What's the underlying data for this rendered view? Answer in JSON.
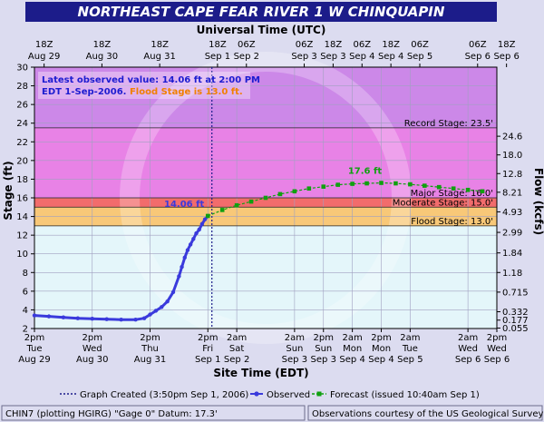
{
  "chart_data": {
    "type": "line",
    "title": "NORTHEAST CAPE FEAR RIVER 1 W CHINQUAPIN",
    "top_axis_title": "Universal Time (UTC)",
    "bottom_axis_title": "Site Time (EDT)",
    "ylabel": "Stage (ft)",
    "y2label": "Flow (kcfs)",
    "ylim": [
      2,
      30
    ],
    "xlim": [
      "Aug 29 2pm",
      "Sep 6 2pm"
    ],
    "y_ticks": [
      2,
      4,
      6,
      8,
      10,
      12,
      14,
      16,
      18,
      20,
      22,
      24,
      26,
      28,
      30
    ],
    "flow_ticks": [
      {
        "stage": 2.05,
        "label": "0.055"
      },
      {
        "stage": 2.9,
        "label": "0.177"
      },
      {
        "stage": 3.8,
        "label": "0.332"
      },
      {
        "stage": 5.9,
        "label": "0.715"
      },
      {
        "stage": 8.0,
        "label": "1.18"
      },
      {
        "stage": 10.1,
        "label": "1.84"
      },
      {
        "stage": 12.3,
        "label": "2.99"
      },
      {
        "stage": 14.5,
        "label": "4.93"
      },
      {
        "stage": 16.6,
        "label": "8.21"
      },
      {
        "stage": 18.6,
        "label": "12.8"
      },
      {
        "stage": 20.6,
        "label": "18.0"
      },
      {
        "stage": 22.6,
        "label": "24.6"
      }
    ],
    "top_ticks": [
      {
        "day": 0.167,
        "l1": "18Z",
        "l2": "Aug 29"
      },
      {
        "day": 1.167,
        "l1": "18Z",
        "l2": "Aug 30"
      },
      {
        "day": 2.167,
        "l1": "18Z",
        "l2": "Aug 31"
      },
      {
        "day": 3.167,
        "l1": "18Z",
        "l2": "Sep 1"
      },
      {
        "day": 3.667,
        "l1": "06Z",
        "l2": "Sep 2"
      },
      {
        "day": 4.667,
        "l1": "06Z",
        "l2": "Sep 3"
      },
      {
        "day": 5.167,
        "l1": "18Z",
        "l2": "Sep 3"
      },
      {
        "day": 5.667,
        "l1": "06Z",
        "l2": "Sep 4"
      },
      {
        "day": 6.167,
        "l1": "18Z",
        "l2": "Sep 4"
      },
      {
        "day": 6.667,
        "l1": "06Z",
        "l2": "Sep 5"
      },
      {
        "day": 7.667,
        "l1": "06Z",
        "l2": "Sep 6"
      },
      {
        "day": 8.167,
        "l1": "18Z",
        "l2": "Sep 6"
      }
    ],
    "bottom_ticks": [
      {
        "day": 0,
        "l1": "2pm",
        "l2": "Tue",
        "l3": "Aug 29"
      },
      {
        "day": 1,
        "l1": "2pm",
        "l2": "Wed",
        "l3": "Aug 30"
      },
      {
        "day": 2,
        "l1": "2pm",
        "l2": "Thu",
        "l3": "Aug 31"
      },
      {
        "day": 3,
        "l1": "2pm",
        "l2": "Fri",
        "l3": "Sep 1"
      },
      {
        "day": 3.5,
        "l1": "2am",
        "l2": "Sat",
        "l3": "Sep 2"
      },
      {
        "day": 4.5,
        "l1": "2am",
        "l2": "Sun",
        "l3": "Sep 3"
      },
      {
        "day": 5,
        "l1": "2pm",
        "l2": "Sun",
        "l3": "Sep 3"
      },
      {
        "day": 5.5,
        "l1": "2am",
        "l2": "Mon",
        "l3": "Sep 4"
      },
      {
        "day": 6,
        "l1": "2pm",
        "l2": "Mon",
        "l3": "Sep 4"
      },
      {
        "day": 6.5,
        "l1": "2am",
        "l2": "Tue",
        "l3": "Sep 5"
      },
      {
        "day": 7.5,
        "l1": "2am",
        "l2": "Wed",
        "l3": "Sep 6"
      },
      {
        "day": 8,
        "l1": "2pm",
        "l2": "Wed",
        "l3": "Sep 6"
      }
    ],
    "stages": [
      {
        "name": "Record Stage",
        "value": 23.5,
        "label": "Record Stage: 23.5'"
      },
      {
        "name": "Major Stage",
        "value": 16.0,
        "label": "Major Stage: 16.0'"
      },
      {
        "name": "Moderate Stage",
        "value": 15.0,
        "label": "Moderate Stage: 15.0'"
      },
      {
        "name": "Flood Stage",
        "value": 13.0,
        "label": "Flood Stage: 13.0'"
      }
    ],
    "series": [
      {
        "name": "Observed",
        "color": "#3a3adc",
        "x": [
          0,
          0.25,
          0.5,
          0.75,
          1,
          1.25,
          1.5,
          1.75,
          1.9,
          2.0,
          2.1,
          2.2,
          2.3,
          2.4,
          2.5,
          2.55,
          2.6,
          2.65,
          2.7,
          2.75,
          2.8,
          2.85,
          2.9,
          2.95,
          3.0
        ],
        "y": [
          3.4,
          3.3,
          3.2,
          3.1,
          3.05,
          3.0,
          2.95,
          2.95,
          3.1,
          3.5,
          3.9,
          4.3,
          4.9,
          5.9,
          7.6,
          8.6,
          9.6,
          10.4,
          11.0,
          11.6,
          12.2,
          12.6,
          13.2,
          13.7,
          14.06
        ]
      },
      {
        "name": "Forecast (issued 10:40am Sep 1)",
        "color": "#10a010",
        "x": [
          3.0,
          3.25,
          3.5,
          3.75,
          4.0,
          4.25,
          4.5,
          4.75,
          5.0,
          5.25,
          5.5,
          5.75,
          6.0,
          6.25,
          6.5,
          6.75,
          7.0,
          7.25,
          7.5,
          7.75
        ],
        "y": [
          14.06,
          14.7,
          15.2,
          15.6,
          16.0,
          16.4,
          16.7,
          17.0,
          17.2,
          17.4,
          17.5,
          17.55,
          17.6,
          17.55,
          17.45,
          17.3,
          17.15,
          17.0,
          16.85,
          16.7
        ]
      }
    ],
    "peak_label": "17.6 ft",
    "peak": {
      "day": 6.0,
      "value": 17.6
    },
    "latest_label": "14.06 ft",
    "latest": {
      "day": 3.0,
      "value": 14.06
    },
    "created_day": 3.07,
    "info_box": {
      "line1": "Latest observed value: 14.06 ft at 2:00 PM",
      "line2": "EDT 1-Sep-2006.",
      "line3": "Flood Stage is 13.0 ft."
    },
    "legend": {
      "created": "Graph Created (3:50pm Sep 1, 2006)",
      "observed": "Observed",
      "forecast": "Forecast (issued 10:40am Sep 1)"
    },
    "footer": {
      "left": "CHIN7 (plotting HGIRG) \"Gage 0\" Datum: 17.3'",
      "right": "Observations courtesy of the US Geological Survey"
    },
    "colors": {
      "title_bg": "#1c1c8a",
      "record_zone": "#cc88e8",
      "major_zone": "#e882e6",
      "moderate_zone": "#f26c6c",
      "flood_zone": "#f8c878",
      "normal_zone": "#e4f6fa",
      "observed": "#3a3adc",
      "forecast": "#10a010",
      "info_text": "#1c1cd0",
      "flood_text": "#f08000"
    }
  }
}
